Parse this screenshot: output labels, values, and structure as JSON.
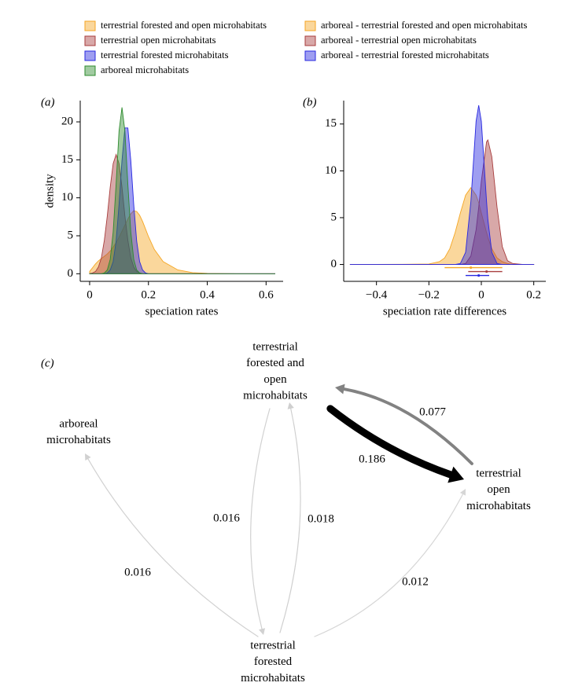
{
  "chart_data": [
    {
      "type": "area",
      "panel_label": "(a)",
      "x_label": "speciation rates",
      "y_label": "density",
      "x": [
        0,
        0.01,
        0.02,
        0.03,
        0.04,
        0.05,
        0.06,
        0.07,
        0.08,
        0.09,
        0.1,
        0.11,
        0.12,
        0.13,
        0.14,
        0.15,
        0.16,
        0.17,
        0.18,
        0.19,
        0.2,
        0.22,
        0.25,
        0.3,
        0.35,
        0.4,
        0.5,
        0.63
      ],
      "series": [
        {
          "name": "terrestrial forested and open microhabitats",
          "color": "#f5a623",
          "values": [
            0.3,
            0.8,
            1.3,
            1.7,
            2.0,
            2.3,
            2.6,
            3.0,
            3.5,
            4.1,
            4.8,
            5.6,
            6.4,
            7.2,
            7.9,
            8.3,
            8.2,
            7.7,
            6.9,
            5.9,
            4.9,
            3.2,
            1.6,
            0.5,
            0.15,
            0.05,
            0,
            0
          ]
        },
        {
          "name": "terrestrial open microhabitats",
          "color": "#a83e3e",
          "values": [
            0,
            0.1,
            0.3,
            0.9,
            2.1,
            4.4,
            7.6,
            11.4,
            14.5,
            15.7,
            14.5,
            11.4,
            7.6,
            4.4,
            2.1,
            0.9,
            0.3,
            0.1,
            0,
            0,
            0,
            0,
            0,
            0,
            0,
            0,
            0,
            0
          ]
        },
        {
          "name": "terrestrial forested microhabitats",
          "color": "#2828e0",
          "values": [
            0,
            0,
            0,
            0,
            0,
            0,
            0.1,
            0.5,
            1.6,
            4.3,
            9.1,
            14.9,
            19.2,
            19.2,
            14.9,
            9.1,
            4.3,
            1.6,
            0.5,
            0.1,
            0,
            0,
            0,
            0,
            0,
            0,
            0,
            0
          ]
        },
        {
          "name": "arboreal microhabitats",
          "color": "#2e8b2e",
          "values": [
            0,
            0,
            0,
            0,
            0,
            0.1,
            0.5,
            1.9,
            5.5,
            11.8,
            18.8,
            21.9,
            18.8,
            11.8,
            5.5,
            1.9,
            0.5,
            0.1,
            0,
            0,
            0,
            0,
            0,
            0,
            0,
            0,
            0,
            0
          ]
        }
      ],
      "xlim": [
        -0.032,
        0.658
      ],
      "ylim": [
        -1.0,
        22.8
      ],
      "xticks": [
        0,
        0.2,
        0.4,
        0.6
      ],
      "yticks": [
        0,
        5,
        10,
        15,
        20
      ]
    },
    {
      "type": "area",
      "panel_label": "(b)",
      "x_label": "speciation rate differences",
      "x": [
        -0.5,
        -0.3,
        -0.2,
        -0.16,
        -0.14,
        -0.12,
        -0.1,
        -0.08,
        -0.06,
        -0.04,
        -0.02,
        -0.01,
        0,
        0.02,
        0.025,
        0.04,
        0.06,
        0.08,
        0.1,
        0.12,
        0.16,
        0.2
      ],
      "series": [
        {
          "name": "arboreal - terrestrial forested and open microhabitats",
          "color": "#f5a623",
          "values": [
            0,
            0.02,
            0.05,
            0.3,
            0.7,
            1.7,
            3.4,
            5.5,
            7.4,
            8.2,
            7.4,
            6.6,
            5.5,
            3.4,
            2.9,
            1.7,
            0.7,
            0.3,
            0.1,
            0,
            0,
            0
          ],
          "interval": [
            -0.14,
            -0.04,
            0.08
          ]
        },
        {
          "name": "arboreal - terrestrial open microhabitats",
          "color": "#a83e3e",
          "values": [
            0,
            0,
            0,
            0,
            0,
            0,
            0,
            0,
            0.1,
            0.9,
            3.7,
            6.1,
            8.9,
            13.1,
            13.3,
            11.5,
            6.1,
            1.9,
            0.4,
            0.1,
            0,
            0
          ],
          "interval": [
            -0.05,
            0.02,
            0.08
          ]
        },
        {
          "name": "arboreal - terrestrial forested microhabitats",
          "color": "#2828e0",
          "values": [
            0,
            0,
            0,
            0,
            0,
            0,
            0,
            0.1,
            1.3,
            6.7,
            15.3,
            17,
            15.3,
            6.7,
            4.8,
            1.3,
            0.1,
            0,
            0,
            0,
            0,
            0
          ],
          "interval": [
            -0.06,
            -0.01,
            0.03
          ]
        }
      ],
      "xlim": [
        -0.525,
        0.246
      ],
      "ylim": [
        -1.8,
        17.5
      ],
      "xticks": [
        {
          "value": -0.4,
          "label": "−0.4"
        },
        {
          "value": -0.2,
          "label": "−0.2"
        },
        0,
        0.2
      ],
      "yticks": [
        0,
        5,
        10,
        15
      ]
    }
  ],
  "diagram": {
    "panel_label": "(c)",
    "nodes": [
      {
        "lines": [
          "terrestrial",
          "forested and",
          "open",
          "microhabitats"
        ],
        "color": "#f5b335"
      },
      {
        "lines": [
          "arboreal",
          "microhabitats"
        ],
        "color": "#3a9a3a"
      },
      {
        "lines": [
          "terrestrial",
          "open",
          "microhabitats"
        ],
        "color": "#b85450"
      },
      {
        "lines": [
          "terrestrial",
          "forested",
          "microhabitats"
        ],
        "color": "#4040ee"
      }
    ],
    "edges": [
      {
        "weight": 0.077
      },
      {
        "weight": 0.186
      },
      {
        "weight": 0.016
      },
      {
        "weight": 0.016
      },
      {
        "weight": 0.018
      },
      {
        "weight": 0.012
      }
    ]
  }
}
